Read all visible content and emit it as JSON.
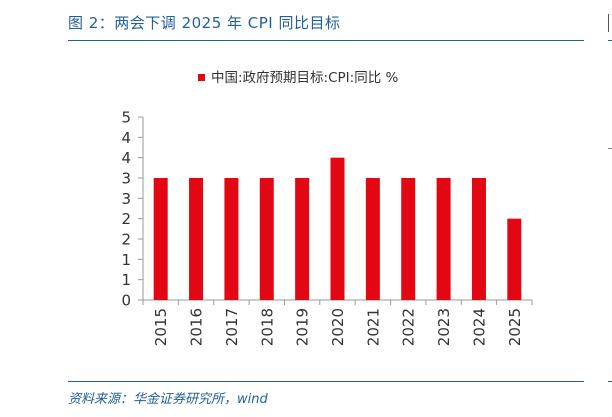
{
  "figure_title": "图 2：两会下调 2025 年 CPI 同比目标",
  "source": "资料来源：华金证券研究所，wind",
  "colors": {
    "bar": "#e30613",
    "title": "#1f5f9c",
    "axis": "#9a9a9a",
    "text": "#333333"
  },
  "chart_data": {
    "type": "bar",
    "categories": [
      "2015",
      "2016",
      "2017",
      "2018",
      "2019",
      "2020",
      "2021",
      "2022",
      "2023",
      "2024",
      "2025"
    ],
    "series": [
      {
        "name": "中国:政府预期目标:CPI:同比 %",
        "values": [
          3,
          3,
          3,
          3,
          3,
          3.5,
          3,
          3,
          3,
          3,
          2
        ],
        "color": "#e30613"
      }
    ],
    "ylim": [
      0,
      4.5
    ],
    "yticks": [
      0,
      0.5,
      1,
      1.5,
      2,
      2.5,
      3,
      3.5,
      4,
      4.5
    ],
    "ytick_labels": [
      "0",
      "1",
      "1",
      "2",
      "2",
      "3",
      "3",
      "4",
      "4",
      "5"
    ],
    "legend_position": "top",
    "grid": false,
    "xlabel": "",
    "ylabel": ""
  }
}
